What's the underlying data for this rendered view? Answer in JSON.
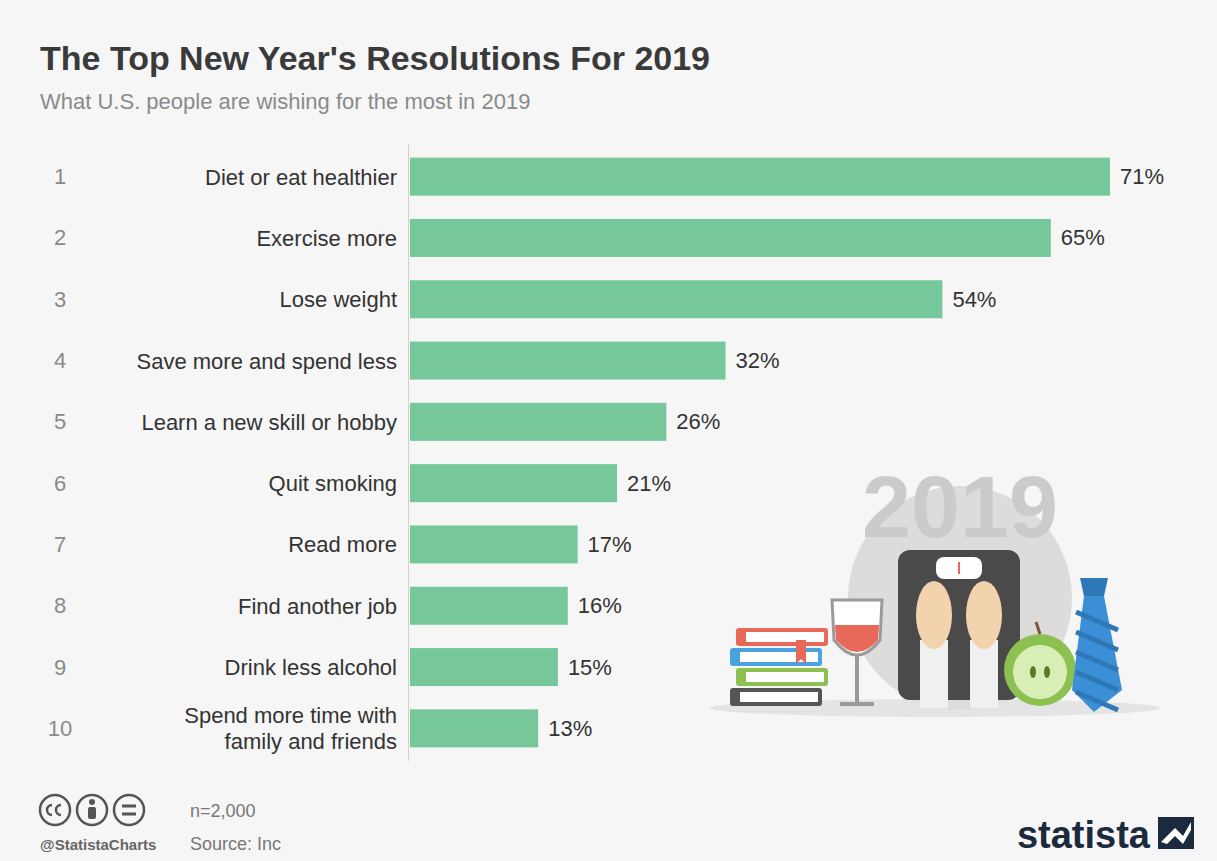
{
  "chart_data": {
    "type": "bar",
    "title": "The Top New Year's Resolutions For 2019",
    "subtitle": "What U.S. people are wishing for the most in 2019",
    "ranks": [
      1,
      2,
      3,
      4,
      5,
      6,
      7,
      8,
      9,
      10
    ],
    "categories": [
      "Diet or eat healthier",
      "Exercise more",
      "Lose weight",
      "Save more and spend less",
      "Learn a new skill or hobby",
      "Quit smoking",
      "Read more",
      "Find another job",
      "Drink less alcohol",
      "Spend more time with\nfamily and friends"
    ],
    "values": [
      71,
      65,
      54,
      32,
      26,
      21,
      17,
      16,
      15,
      13
    ],
    "value_labels": [
      "71%",
      "65%",
      "54%",
      "32%",
      "26%",
      "21%",
      "17%",
      "16%",
      "15%",
      "13%"
    ],
    "color": "#76c799",
    "xlim": [
      0,
      71
    ],
    "orientation": "horizontal",
    "data_labels": true,
    "tick_labels": "y",
    "grid": false,
    "annotations": [
      "n=2,000",
      "Source: Inc",
      "@StatistaCharts",
      "statista",
      "2019"
    ]
  }
}
